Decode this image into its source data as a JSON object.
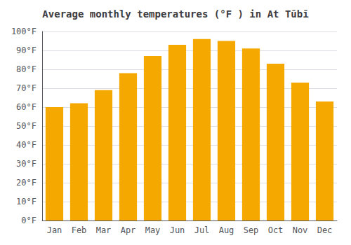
{
  "chart_data": {
    "type": "bar",
    "title": "Average monthly temperatures (°F ) in At Tūbī",
    "categories": [
      "Jan",
      "Feb",
      "Mar",
      "Apr",
      "May",
      "Jun",
      "Jul",
      "Aug",
      "Sep",
      "Oct",
      "Nov",
      "Dec"
    ],
    "values": [
      60,
      62,
      69,
      78,
      87,
      93,
      96,
      95,
      91,
      83,
      73,
      63
    ],
    "color": "#F5A800",
    "ylim": [
      0,
      100
    ],
    "yticks": [
      {
        "value": 0,
        "label": "0°F"
      },
      {
        "value": 10,
        "label": "10°F"
      },
      {
        "value": 20,
        "label": "20°F"
      },
      {
        "value": 30,
        "label": "30°F"
      },
      {
        "value": 40,
        "label": "40°F"
      },
      {
        "value": 50,
        "label": "50°F"
      },
      {
        "value": 60,
        "label": "60°F"
      },
      {
        "value": 70,
        "label": "70°F"
      },
      {
        "value": 80,
        "label": "80°F"
      },
      {
        "value": 90,
        "label": "90°F"
      },
      {
        "value": 100,
        "label": "100°F"
      }
    ],
    "grid": true
  }
}
